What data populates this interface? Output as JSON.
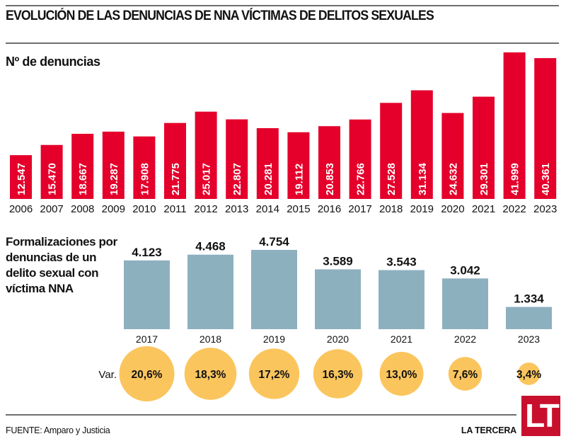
{
  "header": {
    "title": "EVOLUCIÓN DE LAS DENUNCIAS DE NNA VÍCTIMAS DE DELITOS SEXUALES"
  },
  "footer": {
    "source": "FUENTE: Amparo y Justicia",
    "brand": "LA TERCERA",
    "logo_text": "LT"
  },
  "colors": {
    "denuncias_bar": "#e4002b",
    "formalizaciones_bar": "#8db0bf",
    "variation_circle": "#fbc55e",
    "logo": "#c8102e"
  },
  "chart_data": [
    {
      "type": "bar",
      "title": "Nº de denuncias",
      "xlabel": "",
      "ylabel": "",
      "categories": [
        "2006",
        "2007",
        "2008",
        "2009",
        "2010",
        "2011",
        "2012",
        "2013",
        "2014",
        "2015",
        "2016",
        "2017",
        "2018",
        "2019",
        "2020",
        "2021",
        "2022",
        "2023"
      ],
      "values": [
        12547,
        15470,
        18667,
        19287,
        17908,
        21775,
        25017,
        22807,
        20281,
        19112,
        20853,
        22766,
        27528,
        31134,
        24632,
        29301,
        41999,
        40361
      ],
      "value_labels": [
        "12.547",
        "15.470",
        "18.667",
        "19.287",
        "17.908",
        "21.775",
        "25.017",
        "22.807",
        "20.281",
        "19.112",
        "20.853",
        "22.766",
        "27.528",
        "31.134",
        "24.632",
        "29.301",
        "41.999",
        "40.361"
      ],
      "ylim": [
        0,
        42000
      ],
      "grid": false,
      "legend": "none"
    },
    {
      "type": "bar",
      "title": "Formalizaciones por denuncias de un delito sexual con víctima NNA",
      "xlabel": "",
      "ylabel": "",
      "categories": [
        "2017",
        "2018",
        "2019",
        "2020",
        "2021",
        "2022",
        "2023"
      ],
      "values": [
        4123,
        4468,
        4754,
        3589,
        3543,
        3042,
        1334
      ],
      "value_labels": [
        "4.123",
        "4.468",
        "4.754",
        "3.589",
        "3.543",
        "3.042",
        "1.334"
      ],
      "ylim": [
        0,
        4800
      ],
      "grid": false,
      "legend": "none",
      "variation": {
        "label": "Var.",
        "values": [
          20.6,
          18.3,
          17.2,
          16.3,
          13.0,
          7.6,
          3.4
        ],
        "value_labels": [
          "20,6%",
          "18,3%",
          "17,2%",
          "16,3%",
          "13,0%",
          "7,6%",
          "3,4%"
        ]
      }
    }
  ]
}
